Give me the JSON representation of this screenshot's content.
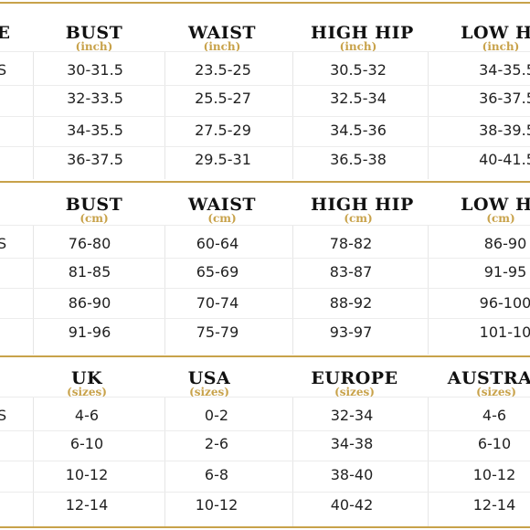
{
  "sections": [
    {
      "first_header": "E",
      "headers": [
        {
          "title": "BUST",
          "unit": "(inch)"
        },
        {
          "title": "WAIST",
          "unit": "(inch)"
        },
        {
          "title": "HIGH HIP",
          "unit": "(inch)"
        },
        {
          "title": "LOW HI",
          "unit": "(inch)"
        }
      ],
      "rows": [
        {
          "size": "S",
          "values": [
            "30-31.5",
            "23.5-25",
            "30.5-32",
            "34-35.5"
          ]
        },
        {
          "size": "",
          "values": [
            "32-33.5",
            "25.5-27",
            "32.5-34",
            "36-37.5"
          ]
        },
        {
          "size": "",
          "values": [
            "34-35.5",
            "27.5-29",
            "34.5-36",
            "38-39.5"
          ]
        },
        {
          "size": "",
          "values": [
            "36-37.5",
            "29.5-31",
            "36.5-38",
            "40-41.5"
          ]
        }
      ]
    },
    {
      "first_header": "",
      "headers": [
        {
          "title": "BUST",
          "unit": "(cm)"
        },
        {
          "title": "WAIST",
          "unit": "(cm)"
        },
        {
          "title": "HIGH HIP",
          "unit": "(cm)"
        },
        {
          "title": "LOW HI",
          "unit": "(cm)"
        }
      ],
      "rows": [
        {
          "size": "S",
          "values": [
            "76-80",
            "60-64",
            "78-82",
            "86-90"
          ]
        },
        {
          "size": "",
          "values": [
            "81-85",
            "65-69",
            "83-87",
            "91-95"
          ]
        },
        {
          "size": "",
          "values": [
            "86-90",
            "70-74",
            "88-92",
            "96-100"
          ]
        },
        {
          "size": "",
          "values": [
            "91-96",
            "75-79",
            "93-97",
            "101-10"
          ]
        }
      ]
    },
    {
      "first_header": "",
      "headers": [
        {
          "title": "UK",
          "unit": "(sizes)"
        },
        {
          "title": "USA",
          "unit": "(sizes)"
        },
        {
          "title": "EUROPE",
          "unit": "(sizes)"
        },
        {
          "title": "AUSTRAL",
          "unit": "(sizes)"
        }
      ],
      "rows": [
        {
          "size": "S",
          "values": [
            "4-6",
            "0-2",
            "32-34",
            "4-6"
          ]
        },
        {
          "size": "",
          "values": [
            "6-10",
            "2-6",
            "34-38",
            "6-10"
          ]
        },
        {
          "size": "",
          "values": [
            "10-12",
            "6-8",
            "38-40",
            "10-12"
          ]
        },
        {
          "size": "",
          "values": [
            "12-14",
            "10-12",
            "40-42",
            "12-14"
          ]
        }
      ]
    }
  ]
}
